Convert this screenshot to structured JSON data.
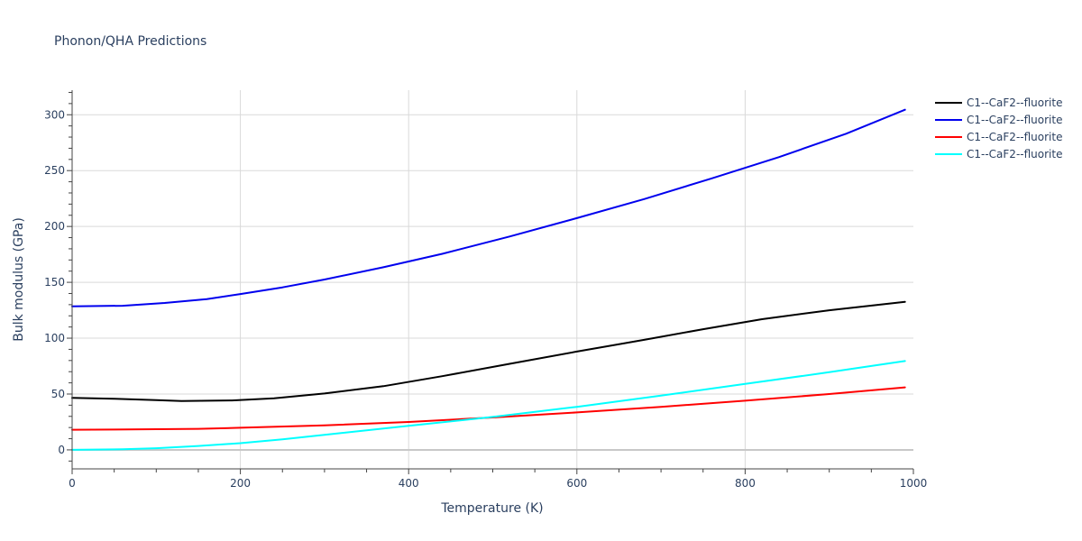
{
  "chart_data": {
    "type": "line",
    "title": "Phonon/QHA Predictions",
    "xlabel": "Temperature (K)",
    "ylabel": "Bulk modulus (GPa)",
    "xlim": [
      0,
      1000
    ],
    "ylim": [
      -17,
      322
    ],
    "xticks": [
      0,
      200,
      400,
      600,
      800,
      1000
    ],
    "yticks": [
      0,
      50,
      100,
      150,
      200,
      250,
      300
    ],
    "grid": true,
    "legend_position": "top-right",
    "series": [
      {
        "name": "C1--CaF2--fluorite",
        "color": "#000000",
        "x": [
          0,
          50,
          100,
          130,
          190,
          240,
          300,
          370,
          440,
          520,
          600,
          680,
          750,
          820,
          900,
          990
        ],
        "y": [
          46.5,
          45.8,
          44.5,
          43.8,
          44.3,
          46.2,
          50.5,
          57.0,
          66.0,
          77.0,
          88.0,
          98.5,
          108.0,
          117.0,
          125.0,
          132.5
        ]
      },
      {
        "name": "C1--CaF2--fluorite",
        "color": "#0000ee",
        "x": [
          0,
          60,
          110,
          160,
          200,
          250,
          300,
          370,
          440,
          520,
          600,
          680,
          760,
          840,
          920,
          990
        ],
        "y": [
          128.5,
          129.0,
          131.5,
          135.0,
          139.5,
          145.5,
          152.5,
          163.5,
          175.5,
          191.0,
          207.5,
          224.5,
          243.0,
          262.0,
          283.0,
          304.5
        ]
      },
      {
        "name": "C1--CaF2--fluorite",
        "color": "#ff0000",
        "x": [
          0,
          50,
          100,
          150,
          200,
          300,
          400,
          500,
          600,
          700,
          800,
          900,
          990
        ],
        "y": [
          18.0,
          18.2,
          18.5,
          18.8,
          19.8,
          22.0,
          25.0,
          29.0,
          33.5,
          38.5,
          44.0,
          50.0,
          56.0
        ]
      },
      {
        "name": "C1--CaF2--fluorite",
        "color": "#00ffff",
        "x": [
          0,
          60,
          100,
          150,
          200,
          250,
          300,
          400,
          500,
          600,
          700,
          800,
          900,
          990
        ],
        "y": [
          0.0,
          0.5,
          1.5,
          3.5,
          6.0,
          9.5,
          13.5,
          21.5,
          29.5,
          38.5,
          48.5,
          59.0,
          69.5,
          79.5
        ]
      }
    ]
  }
}
